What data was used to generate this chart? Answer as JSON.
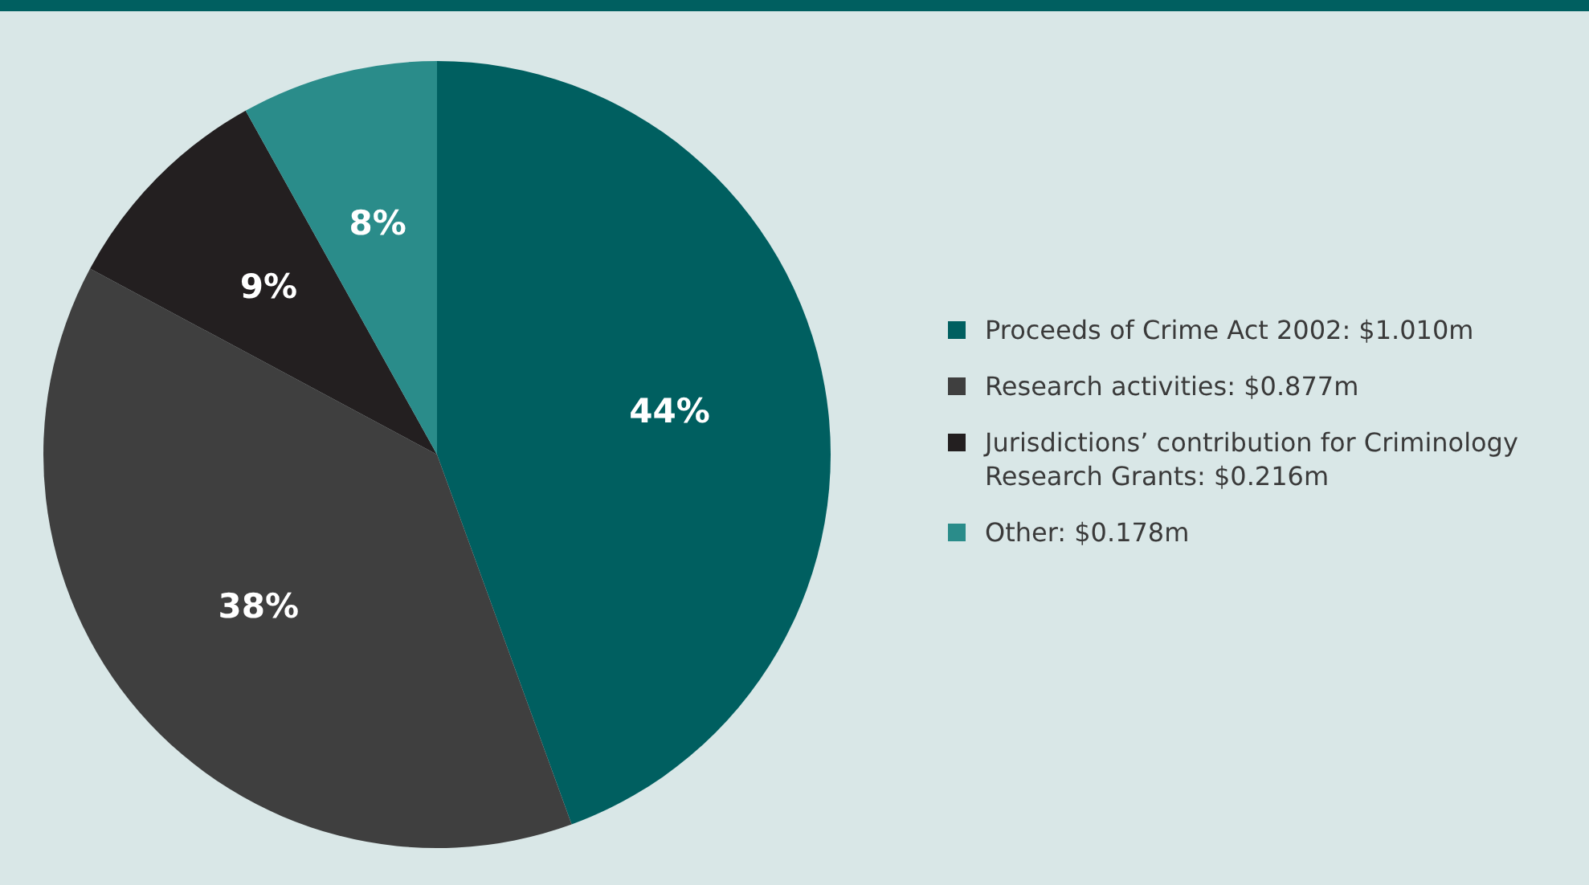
{
  "chart_data": {
    "type": "pie",
    "categories": [
      "Proceeds of Crime Act 2002: $1.010m",
      "Research activities: $0.877m",
      "Jurisdictions’ contribution for Criminology Research Grants: $0.216m",
      "Other: $0.178m"
    ],
    "values": [
      44,
      38,
      9,
      8
    ],
    "value_labels": [
      "44%",
      "38%",
      "9%",
      "8%"
    ],
    "colors": [
      "#005f60",
      "#3f3f3f",
      "#231f20",
      "#2a8c8a"
    ],
    "legend": "right"
  }
}
